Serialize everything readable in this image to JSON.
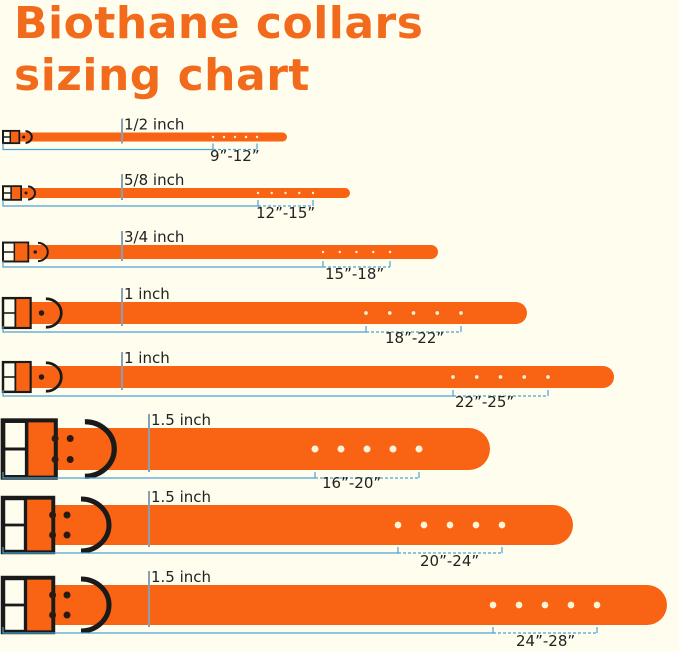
{
  "title_line1": "Biothane collars",
  "title_line2": "sizing chart",
  "colors": {
    "title": "#f26a1b",
    "strap": "#f96414",
    "bracket": "#4aa3d4",
    "background": "#fffdee",
    "hardware": "#1a1a1a"
  },
  "collars": [
    {
      "width_label": "1/2 inch",
      "range_label": "9”-12”"
    },
    {
      "width_label": "5/8 inch",
      "range_label": "12”-15”"
    },
    {
      "width_label": "3/4 inch",
      "range_label": "15”-18”"
    },
    {
      "width_label": "1 inch",
      "range_label": "18”-22”"
    },
    {
      "width_label": "1 inch",
      "range_label": "22”-25”"
    },
    {
      "width_label": "1.5 inch",
      "range_label": "16”-20”"
    },
    {
      "width_label": "1.5 inch",
      "range_label": "20”-24”"
    },
    {
      "width_label": "1.5 inch",
      "range_label": "24”-28”"
    }
  ]
}
